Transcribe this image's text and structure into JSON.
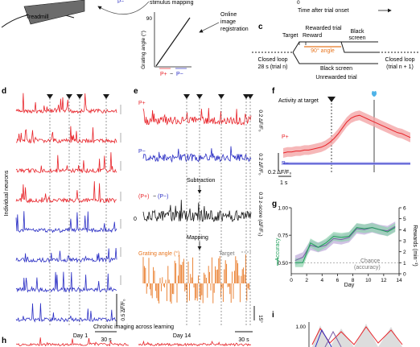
{
  "panel_labels": [
    "c",
    "d",
    "e",
    "f",
    "g",
    "h",
    "i"
  ],
  "panel_a": {
    "treadmill": "Treadmill",
    "p_minus": "P−",
    "stimulus_mapping": "stimulus mapping",
    "grating_angle_axis": "Grating angle (°)",
    "y_tick": "90",
    "x_label_pplus": "P+",
    "x_label_minus": "−",
    "x_label_pminus": "P−",
    "online_registration": [
      "Online",
      "image",
      "registration"
    ]
  },
  "panel_top_right": {
    "time_after_trial_onset": "Time after trial onset",
    "zero_tick": "0"
  },
  "panel_c": {
    "rewarded_trial": "Rewarded trial",
    "target": "Target",
    "reward": "Reward",
    "black_screen_top": [
      "Black",
      "screen"
    ],
    "angle": "90° angle",
    "closed_loop_left": "Closed loop",
    "trial_n": "28 s (trial n)",
    "closed_loop_right": "Closed loop",
    "trial_n1": "(trial n + 1)",
    "black_screen_bottom": "Black screen",
    "unrewarded_trial": "Unrewarded trial"
  },
  "panel_d": {
    "ylabel": "Individual neurons",
    "scale_y": "0.5 ΔF/F₀",
    "scale_x": "30 s",
    "trace_colors": [
      "#e8242a",
      "#e8242a",
      "#e8242a",
      "#e8242a",
      "#2b2fc4",
      "#2b2fc4",
      "#2b2fc4",
      "#2b2fc4"
    ]
  },
  "panel_e": {
    "pplus": "P+",
    "pminus": "P−",
    "scale_top": "0.2 ΔF/F₀",
    "scale_mid": "0.2 ΔF/F₀",
    "subtraction": "Subtraction",
    "diff_label_a": "(P+)",
    "diff_label_minus": "−",
    "diff_label_b": "(P−)",
    "zero": "0",
    "zscore_scale": "0.3 z-score (ΔF/F₀)",
    "mapping": "Mapping",
    "grating_angle": "Grating angle (°)",
    "target": "Target",
    "angle_scale": "15°",
    "time_scale": "30 s"
  },
  "panel_f": {
    "title": "Activity at target",
    "pplus": "P+",
    "pminus": "P−",
    "scale_y": "0.2 ΔF/F₀",
    "scale_x": "1 s"
  },
  "panel_g": {
    "left_axis_label": "Accuracy",
    "right_axis_label": "Rewards (min⁻¹)",
    "xlabel": "Day",
    "chance": [
      "Chance",
      "(accuracy)"
    ],
    "left_ticks": [
      "0.50",
      "0.75",
      "1.00"
    ],
    "right_ticks": [
      "0",
      "1",
      "2",
      "3",
      "4",
      "5",
      "6"
    ],
    "x_ticks": [
      "0",
      "2",
      "4",
      "6",
      "8",
      "10",
      "12",
      "14"
    ]
  },
  "panel_h": {
    "title": "Chronic imaging across learning",
    "day1": "Day 1",
    "day14": "Day 14"
  },
  "panel_i": {
    "y_tick": "1.00"
  },
  "colors": {
    "red": "#e8242a",
    "blue": "#2b2fc4",
    "orange": "#e87722",
    "green": "#1f9e5a",
    "purple": "#7b5ea7",
    "dark": "#1a1a1a",
    "gray": "#777777"
  },
  "chart_data": [
    {
      "type": "line",
      "panel": "g",
      "x": [
        0.5,
        1.5,
        2.5,
        3.5,
        4.5,
        5.5,
        6.5,
        7.5,
        8.5,
        9.5,
        10.5,
        11.5,
        12.5,
        13.5
      ],
      "series": [
        {
          "name": "Accuracy",
          "axis": "left",
          "values": [
            0.5,
            0.5,
            0.68,
            0.64,
            0.68,
            0.74,
            0.73,
            0.74,
            0.82,
            0.81,
            0.82,
            0.8,
            0.78,
            0.82
          ]
        },
        {
          "name": "Rewards (min⁻¹)",
          "axis": "right",
          "values": [
            1.2,
            1.5,
            2.6,
            2.4,
            2.6,
            3.2,
            3.1,
            3.3,
            4.1,
            4.0,
            4.2,
            4.0,
            3.9,
            4.3
          ]
        }
      ],
      "xlabel": "Day",
      "ylim_left": [
        0.4,
        1.0
      ],
      "ylim_right": [
        0,
        6
      ],
      "xlim": [
        0,
        14
      ],
      "chance_level": 0.5
    },
    {
      "type": "line",
      "panel": "f",
      "series": [
        {
          "name": "P+",
          "values": [
            0.05,
            0.06,
            0.06,
            0.07,
            0.07,
            0.08,
            0.08,
            0.09,
            0.1,
            0.11,
            0.13,
            0.16,
            0.2,
            0.25,
            0.31,
            0.37,
            0.41,
            0.43,
            0.44,
            0.42,
            0.4,
            0.38,
            0.36,
            0.34,
            0.32,
            0.3,
            0.28,
            0.26,
            0.25,
            0.23,
            0.21
          ]
        },
        {
          "name": "P−",
          "values": [
            -0.06,
            -0.06,
            -0.06,
            -0.06,
            -0.06,
            -0.06,
            -0.06,
            -0.06,
            -0.06,
            -0.06,
            -0.06,
            -0.06,
            -0.06,
            -0.06,
            -0.06,
            -0.06,
            -0.06,
            -0.06,
            -0.06,
            -0.06,
            -0.06,
            -0.06,
            -0.06,
            -0.06,
            -0.06,
            -0.06,
            -0.06,
            -0.06,
            -0.06,
            -0.06,
            -0.06
          ]
        }
      ]
    }
  ]
}
